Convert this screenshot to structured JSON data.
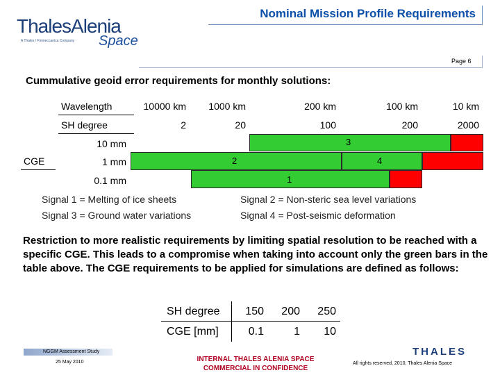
{
  "header": {
    "logo_text": "ThalesAlenia",
    "logo_tagline": "A Thales / Finmeccanica Company",
    "logo_space": "Space",
    "title": "Nominal Mission Profile Requirements",
    "page": "Page 6"
  },
  "subheading": "Cummulative geoid error requirements for monthly solutions:",
  "table1": {
    "row_labels": [
      "Wavelength",
      "SH degree"
    ],
    "wavelengths": [
      "10000 km",
      "1000 km",
      "200 km",
      "100 km",
      "10 km"
    ],
    "sh_degrees": [
      "2",
      "20",
      "100",
      "200",
      "2000"
    ],
    "cge_label": "CGE",
    "levels": [
      "10 mm",
      "1 mm",
      "0.1 mm"
    ],
    "bar_labels": {
      "bar3": "3",
      "bar2": "2",
      "bar4": "4",
      "bar1": "1"
    }
  },
  "signals": {
    "s1": "Signal 1 = Melting of ice sheets",
    "s2": "Signal 2 = Non-steric sea level variations",
    "s3": "Signal 3 = Ground water variations",
    "s4": "Signal 4 = Post-seismic deformation"
  },
  "paragraph": "Restriction to more realistic requirements by limiting spatial resolution to be reached with a specific CGE. This leads to a compromise when taking into account only the green bars in the table above. The CGE requirements to be applied for simulations are defined as follows:",
  "table2": {
    "sh_label": "SH degree",
    "sh_values": [
      "150",
      "200",
      "250"
    ],
    "cge_label": "CGE [mm]",
    "cge_values": [
      "0.1",
      "1",
      "10"
    ]
  },
  "footer": {
    "study": "NGGM Assessment Study",
    "date": "25 May 2010",
    "classification_1": "INTERNAL THALES ALENIA SPACE",
    "classification_2": "COMMERCIAL IN CONFIDENCE",
    "thales": "THALES",
    "rights": "All rights reserved, 2010, Thales Alenia Space"
  },
  "colors": {
    "bar_green": "#33cc33",
    "bar_red": "#ff0000",
    "title_blue": "#0b4fa8",
    "classification_red": "#b00020"
  }
}
